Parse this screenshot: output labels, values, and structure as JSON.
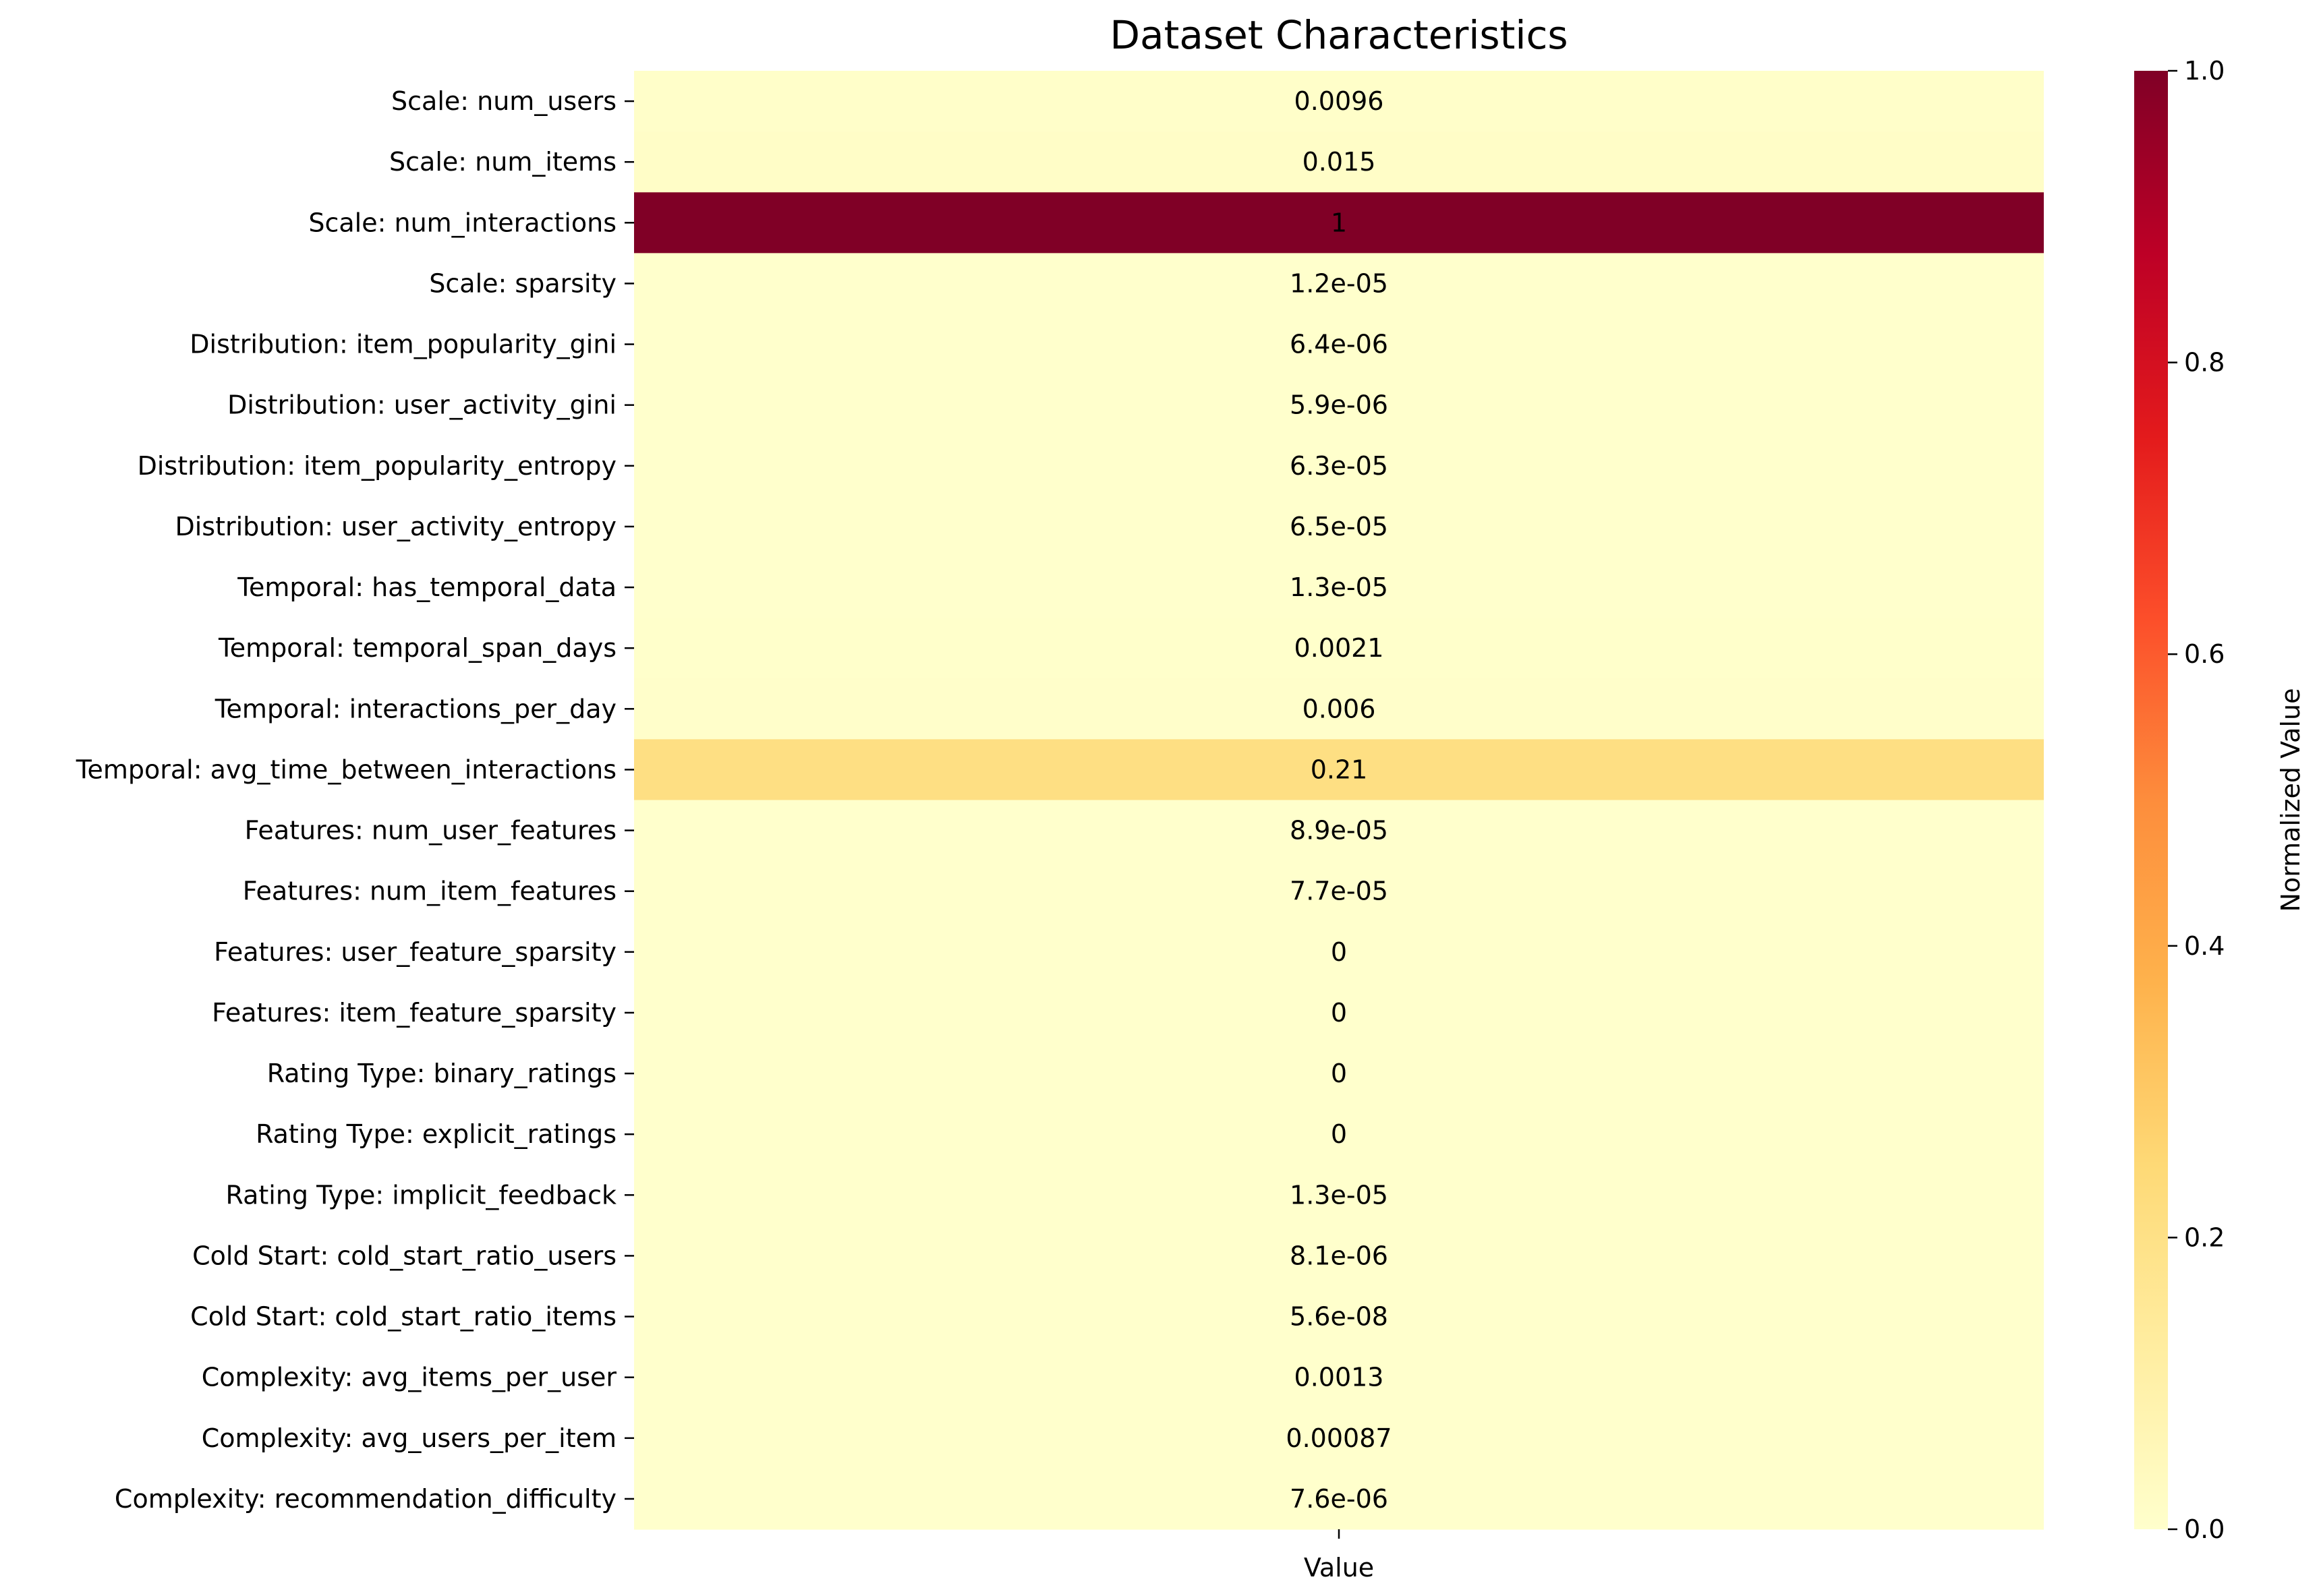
{
  "chart_data": {
    "type": "heatmap",
    "title": "Dataset Characteristics",
    "xlabel": "Value",
    "columns": [
      "Value"
    ],
    "rows": [
      {
        "label": "Scale: num_users",
        "value": 0.0096,
        "text": "0.0096"
      },
      {
        "label": "Scale: num_items",
        "value": 0.015,
        "text": "0.015"
      },
      {
        "label": "Scale: num_interactions",
        "value": 1,
        "text": "1"
      },
      {
        "label": "Scale: sparsity",
        "value": 1.2e-05,
        "text": "1.2e-05"
      },
      {
        "label": "Distribution: item_popularity_gini",
        "value": 6.4e-06,
        "text": "6.4e-06"
      },
      {
        "label": "Distribution: user_activity_gini",
        "value": 5.9e-06,
        "text": "5.9e-06"
      },
      {
        "label": "Distribution: item_popularity_entropy",
        "value": 6.3e-05,
        "text": "6.3e-05"
      },
      {
        "label": "Distribution: user_activity_entropy",
        "value": 6.5e-05,
        "text": "6.5e-05"
      },
      {
        "label": "Temporal: has_temporal_data",
        "value": 1.3e-05,
        "text": "1.3e-05"
      },
      {
        "label": "Temporal: temporal_span_days",
        "value": 0.0021,
        "text": "0.0021"
      },
      {
        "label": "Temporal: interactions_per_day",
        "value": 0.006,
        "text": "0.006"
      },
      {
        "label": "Temporal: avg_time_between_interactions",
        "value": 0.21,
        "text": "0.21"
      },
      {
        "label": "Features: num_user_features",
        "value": 8.9e-05,
        "text": "8.9e-05"
      },
      {
        "label": "Features: num_item_features",
        "value": 7.7e-05,
        "text": "7.7e-05"
      },
      {
        "label": "Features: user_feature_sparsity",
        "value": 0,
        "text": "0"
      },
      {
        "label": "Features: item_feature_sparsity",
        "value": 0,
        "text": "0"
      },
      {
        "label": "Rating Type: binary_ratings",
        "value": 0,
        "text": "0"
      },
      {
        "label": "Rating Type: explicit_ratings",
        "value": 0,
        "text": "0"
      },
      {
        "label": "Rating Type: implicit_feedback",
        "value": 1.3e-05,
        "text": "1.3e-05"
      },
      {
        "label": "Cold Start: cold_start_ratio_users",
        "value": 8.1e-06,
        "text": "8.1e-06"
      },
      {
        "label": "Cold Start: cold_start_ratio_items",
        "value": 5.6e-08,
        "text": "5.6e-08"
      },
      {
        "label": "Complexity: avg_items_per_user",
        "value": 0.0013,
        "text": "0.0013"
      },
      {
        "label": "Complexity: avg_users_per_item",
        "value": 0.00087,
        "text": "0.00087"
      },
      {
        "label": "Complexity: recommendation_difficulty",
        "value": 7.6e-06,
        "text": "7.6e-06"
      }
    ],
    "colormap": "YlOrRd",
    "color_stops": [
      "#ffffcc",
      "#ffeda0",
      "#fed976",
      "#feb24c",
      "#fd8d3c",
      "#fc4e2a",
      "#e31a1c",
      "#bd0026",
      "#800026"
    ],
    "vmin": 0,
    "vmax": 1,
    "colorbar": {
      "label": "Normalized Value",
      "ticks": [
        0.0,
        0.2,
        0.4,
        0.6,
        0.8,
        1.0
      ],
      "tick_labels": [
        "0.0",
        "0.2",
        "0.4",
        "0.6",
        "0.8",
        "1.0"
      ]
    },
    "annotation_light_color": "#ffffff",
    "annotation_dark_color": "#262626"
  }
}
